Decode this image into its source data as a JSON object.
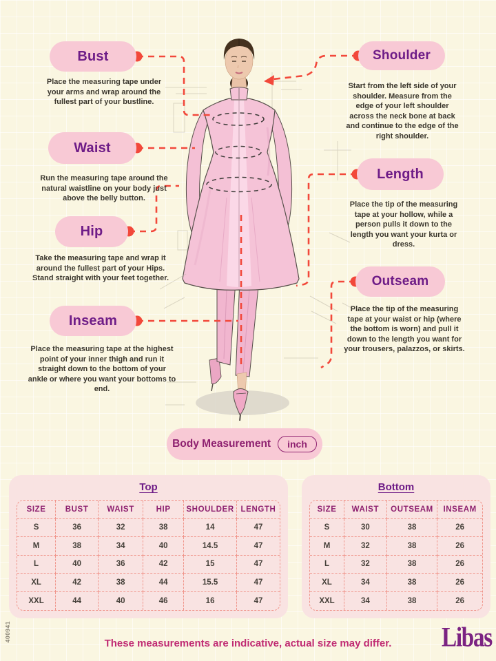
{
  "page": {
    "code": "400941"
  },
  "colors": {
    "background": "#faf6e1",
    "pill_pink": "#f8c9d5",
    "label_purple": "#6e1c87",
    "magenta": "#8e2170",
    "connector_red": "#f2483a",
    "panel_pink": "#f9e3e2",
    "dashed_border": "#f0948a",
    "footer_magenta": "#c02b72",
    "brand_purple": "#7b2382",
    "dress_pink": "#f5c3d7"
  },
  "sections": {
    "bust": {
      "label": "Bust",
      "desc": "Place the measuring tape under your arms and wrap around the fullest part of your bustline."
    },
    "waist": {
      "label": "Waist",
      "desc": "Run the measuring tape around the natural waistline on your body just above the belly button."
    },
    "hip": {
      "label": "Hip",
      "desc": "Take the measuring tape and wrap it around the fullest part of your Hips. Stand straight with your feet together."
    },
    "inseam": {
      "label": "Inseam",
      "desc": "Place the measuring tape at the highest point of your inner thigh and run it straight down to the bottom of your ankle or where you want your bottoms to end."
    },
    "shoulder": {
      "label": "Shoulder",
      "desc": "Start from the left side of your shoulder. Measure from the edge of your left shoulder across the neck bone at back and continue to the edge of the right shoulder."
    },
    "length": {
      "label": "Length",
      "desc": "Place the tip of the measuring tape at your hollow, while a person pulls it down to the length you want your kurta or dress."
    },
    "outseam": {
      "label": "Outseam",
      "desc": "Place the tip of the measuring tape at your waist or hip (where the bottom is worn) and pull it down to the length you want for your trousers, palazzos, or skirts."
    }
  },
  "measurement_bar": {
    "label": "Body Measurement",
    "unit": "inch"
  },
  "tables": {
    "top": {
      "title": "Top",
      "headers": [
        "SIZE",
        "BUST",
        "WAIST",
        "HIP",
        "SHOULDER",
        "LENGTH"
      ],
      "rows": [
        [
          "S",
          "36",
          "32",
          "38",
          "14",
          "47"
        ],
        [
          "M",
          "38",
          "34",
          "40",
          "14.5",
          "47"
        ],
        [
          "L",
          "40",
          "36",
          "42",
          "15",
          "47"
        ],
        [
          "XL",
          "42",
          "38",
          "44",
          "15.5",
          "47"
        ],
        [
          "XXL",
          "44",
          "40",
          "46",
          "16",
          "47"
        ]
      ]
    },
    "bottom": {
      "title": "Bottom",
      "headers": [
        "SIZE",
        "WAIST",
        "OUTSEAM",
        "INSEAM"
      ],
      "rows": [
        [
          "S",
          "30",
          "38",
          "26"
        ],
        [
          "M",
          "32",
          "38",
          "26"
        ],
        [
          "L",
          "32",
          "38",
          "26"
        ],
        [
          "XL",
          "34",
          "38",
          "26"
        ],
        [
          "XXL",
          "34",
          "38",
          "26"
        ]
      ]
    }
  },
  "footer": {
    "note": "These measurements are indicative, actual size may differ.",
    "brand": "Libas"
  }
}
